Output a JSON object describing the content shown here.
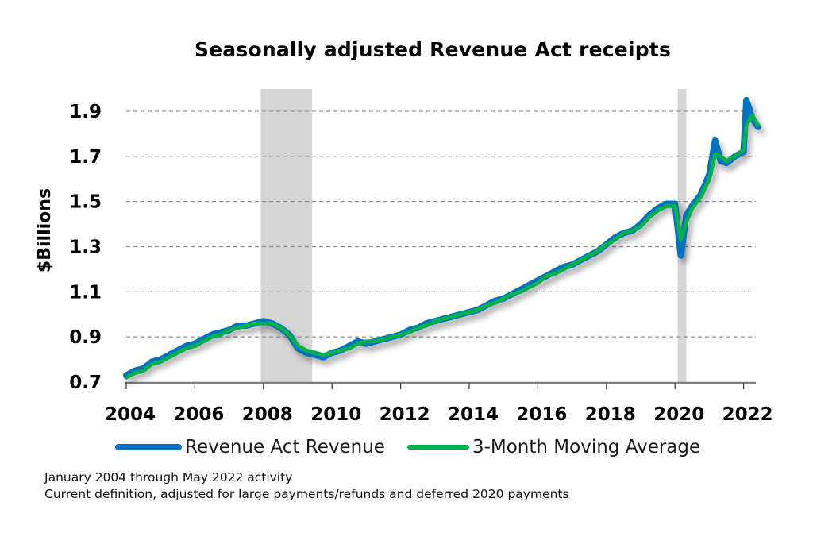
{
  "chart_data": {
    "type": "line",
    "title": "Seasonally adjusted Revenue Act receipts",
    "xlabel": "",
    "ylabel": "$Billions",
    "xlim": [
      2004.0,
      2022.42
    ],
    "ylim": [
      0.7,
      1.95
    ],
    "yticks": [
      0.7,
      0.9,
      1.1,
      1.3,
      1.5,
      1.7,
      1.9
    ],
    "ytick_labels": [
      "0.7",
      "0.9",
      "1.1",
      "1.3",
      "1.5",
      "1.7",
      "1.9"
    ],
    "xticks": [
      2004,
      2006,
      2008,
      2010,
      2012,
      2014,
      2016,
      2018,
      2020,
      2022
    ],
    "xtick_labels": [
      "2004",
      "2006",
      "2008",
      "2010",
      "2012",
      "2014",
      "2016",
      "2018",
      "2020",
      "2022"
    ],
    "grid": "horizontal-dashed",
    "legend_position": "bottom",
    "shaded_periods": [
      {
        "label": "recession",
        "start": 2007.92,
        "end": 2009.42
      },
      {
        "label": "recession",
        "start": 2020.08,
        "end": 2020.33
      }
    ],
    "series": [
      {
        "name": "Revenue Act Revenue",
        "color": "#0070c0",
        "x": [
          2004.0,
          2004.25,
          2004.5,
          2004.75,
          2005.0,
          2005.25,
          2005.5,
          2005.75,
          2006.0,
          2006.25,
          2006.5,
          2006.75,
          2007.0,
          2007.25,
          2007.5,
          2007.75,
          2008.0,
          2008.25,
          2008.5,
          2008.75,
          2009.0,
          2009.25,
          2009.5,
          2009.75,
          2010.0,
          2010.25,
          2010.5,
          2010.75,
          2011.0,
          2011.25,
          2011.5,
          2011.75,
          2012.0,
          2012.25,
          2012.5,
          2012.75,
          2013.0,
          2013.25,
          2013.5,
          2013.75,
          2014.0,
          2014.25,
          2014.5,
          2014.75,
          2015.0,
          2015.25,
          2015.5,
          2015.75,
          2016.0,
          2016.25,
          2016.5,
          2016.75,
          2017.0,
          2017.25,
          2017.5,
          2017.75,
          2018.0,
          2018.25,
          2018.5,
          2018.75,
          2019.0,
          2019.25,
          2019.5,
          2019.75,
          2020.0,
          2020.17,
          2020.33,
          2020.5,
          2020.75,
          2021.0,
          2021.17,
          2021.33,
          2021.5,
          2021.75,
          2022.0,
          2022.08,
          2022.25,
          2022.42
        ],
        "values": [
          0.73,
          0.75,
          0.76,
          0.79,
          0.8,
          0.82,
          0.84,
          0.86,
          0.87,
          0.89,
          0.91,
          0.92,
          0.93,
          0.95,
          0.95,
          0.96,
          0.97,
          0.96,
          0.94,
          0.91,
          0.85,
          0.83,
          0.82,
          0.81,
          0.83,
          0.84,
          0.86,
          0.88,
          0.87,
          0.88,
          0.89,
          0.9,
          0.91,
          0.93,
          0.94,
          0.96,
          0.97,
          0.98,
          0.99,
          1.0,
          1.01,
          1.02,
          1.04,
          1.06,
          1.07,
          1.09,
          1.11,
          1.13,
          1.15,
          1.17,
          1.19,
          1.21,
          1.22,
          1.24,
          1.26,
          1.28,
          1.31,
          1.34,
          1.36,
          1.37,
          1.4,
          1.44,
          1.47,
          1.49,
          1.49,
          1.26,
          1.44,
          1.48,
          1.53,
          1.62,
          1.77,
          1.68,
          1.67,
          1.7,
          1.72,
          1.95,
          1.87,
          1.83
        ]
      },
      {
        "name": "3-Month Moving Average",
        "color": "#00b050",
        "x": [
          2004.0,
          2004.25,
          2004.5,
          2004.75,
          2005.0,
          2005.25,
          2005.5,
          2005.75,
          2006.0,
          2006.25,
          2006.5,
          2006.75,
          2007.0,
          2007.25,
          2007.5,
          2007.75,
          2008.0,
          2008.25,
          2008.5,
          2008.75,
          2009.0,
          2009.25,
          2009.5,
          2009.75,
          2010.0,
          2010.25,
          2010.5,
          2010.75,
          2011.0,
          2011.25,
          2011.5,
          2011.75,
          2012.0,
          2012.25,
          2012.5,
          2012.75,
          2013.0,
          2013.25,
          2013.5,
          2013.75,
          2014.0,
          2014.25,
          2014.5,
          2014.75,
          2015.0,
          2015.25,
          2015.5,
          2015.75,
          2016.0,
          2016.25,
          2016.5,
          2016.75,
          2017.0,
          2017.25,
          2017.5,
          2017.75,
          2018.0,
          2018.25,
          2018.5,
          2018.75,
          2019.0,
          2019.25,
          2019.5,
          2019.75,
          2020.0,
          2020.17,
          2020.33,
          2020.5,
          2020.75,
          2021.0,
          2021.17,
          2021.33,
          2021.5,
          2021.75,
          2022.0,
          2022.08,
          2022.25,
          2022.42
        ],
        "values": [
          0.72,
          0.74,
          0.75,
          0.78,
          0.79,
          0.81,
          0.83,
          0.85,
          0.86,
          0.88,
          0.9,
          0.91,
          0.93,
          0.94,
          0.95,
          0.96,
          0.96,
          0.96,
          0.94,
          0.91,
          0.86,
          0.84,
          0.83,
          0.82,
          0.83,
          0.84,
          0.85,
          0.87,
          0.88,
          0.88,
          0.89,
          0.9,
          0.91,
          0.92,
          0.94,
          0.95,
          0.97,
          0.98,
          0.99,
          1.0,
          1.01,
          1.02,
          1.04,
          1.05,
          1.07,
          1.09,
          1.1,
          1.12,
          1.14,
          1.17,
          1.18,
          1.2,
          1.22,
          1.24,
          1.26,
          1.28,
          1.31,
          1.33,
          1.36,
          1.37,
          1.39,
          1.43,
          1.46,
          1.48,
          1.48,
          1.33,
          1.41,
          1.47,
          1.52,
          1.6,
          1.71,
          1.7,
          1.68,
          1.7,
          1.73,
          1.84,
          1.88,
          1.84
        ]
      }
    ]
  },
  "legend": {
    "items": [
      {
        "label": "Revenue Act Revenue",
        "color": "#0070c0"
      },
      {
        "label": "3-Month Moving Average",
        "color": "#00b050"
      }
    ]
  },
  "notes": {
    "line1": "January 2004 through May 2022 activity",
    "line2": "Current definition, adjusted for large payments/refunds and deferred 2020 payments"
  }
}
